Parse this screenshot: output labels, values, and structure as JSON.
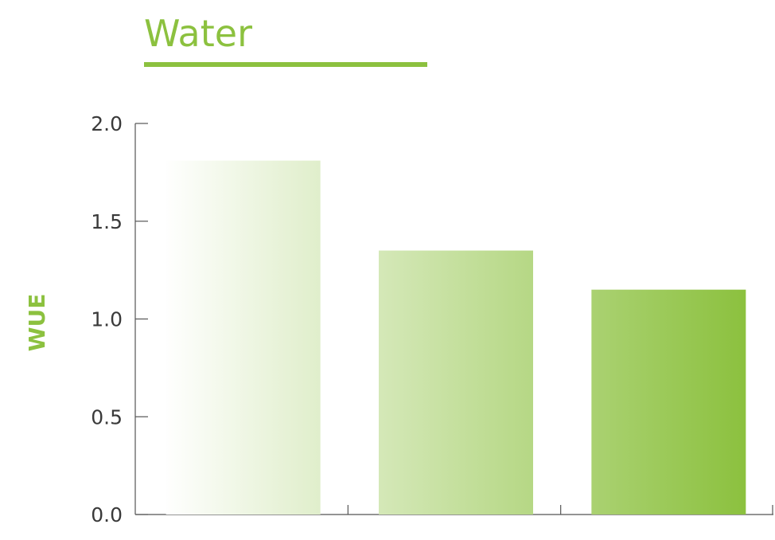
{
  "chart_data": {
    "type": "bar",
    "title": "Water",
    "xlabel": "",
    "ylabel": "WUE",
    "categories": [
      "",
      "",
      ""
    ],
    "values": [
      1.81,
      1.35,
      1.15
    ],
    "ylim": [
      0,
      2.0
    ],
    "yticks": [
      "0.0",
      "0.5",
      "1.0",
      "1.5",
      "2.0"
    ],
    "ytick_values": [
      0,
      0.5,
      1.0,
      1.5,
      2.0
    ],
    "grid": false,
    "legend": "none"
  },
  "colors": {
    "accent": "#8cc13f",
    "bar_gradient_start": "#ffffff",
    "bar_gradient_end": "#8cc13f",
    "axis": "#555555",
    "text": "#3a3a3a"
  }
}
